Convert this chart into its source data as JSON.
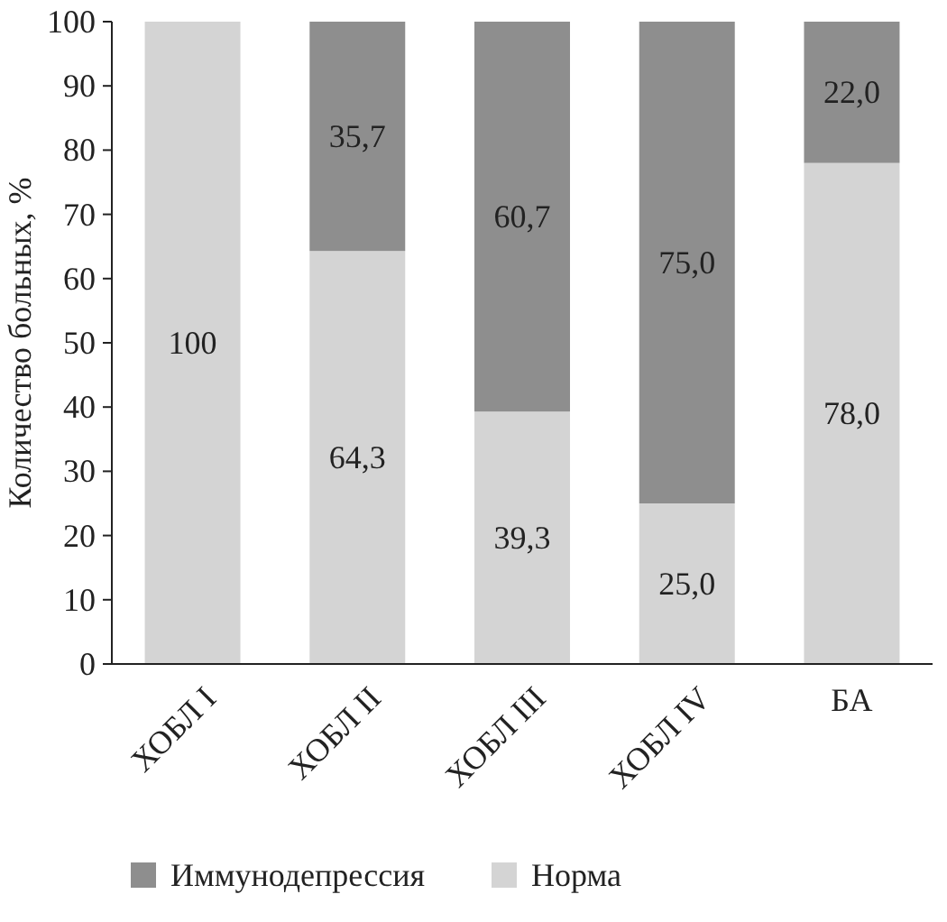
{
  "chart_data": {
    "type": "bar",
    "stacked": true,
    "ylabel": "Количество больных, %",
    "categories": [
      "ХОБЛ I",
      "ХОБЛ II",
      "ХОБЛ III",
      "ХОБЛ IV",
      "БА"
    ],
    "series": [
      {
        "name": "Норма",
        "color": "#d4d4d4",
        "values": [
          100,
          64.3,
          39.3,
          25.0,
          78.0
        ],
        "value_labels": [
          "100",
          "64,3",
          "39,3",
          "25,0",
          "78,0"
        ]
      },
      {
        "name": "Иммунодепрессия",
        "color": "#8e8e8e",
        "values": [
          0,
          35.7,
          60.7,
          75.0,
          22.0
        ],
        "value_labels": [
          null,
          "35,7",
          "60,7",
          "75,0",
          "22,0"
        ]
      }
    ],
    "ylim": [
      0,
      100
    ],
    "yticks": [
      0,
      10,
      20,
      30,
      40,
      50,
      60,
      70,
      80,
      90,
      100
    ],
    "grid": false,
    "legend": "bottom"
  }
}
